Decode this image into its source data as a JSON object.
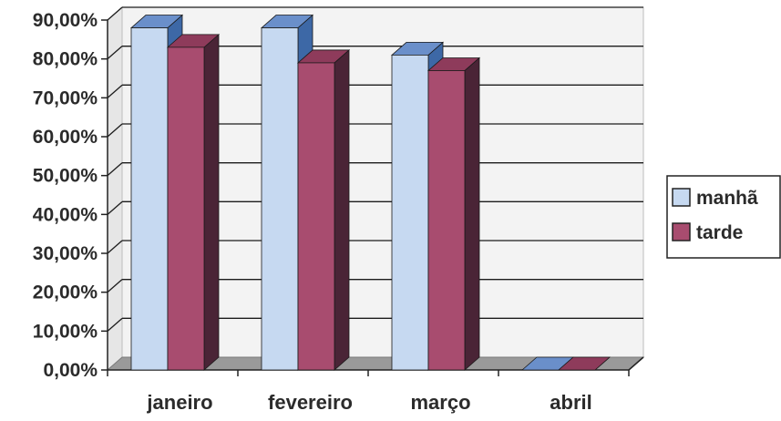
{
  "chart_data": {
    "type": "bar",
    "variant": "3d-clustered",
    "categories": [
      "janeiro",
      "fevereiro",
      "março",
      "abril"
    ],
    "series": [
      {
        "name": "manhã",
        "values": [
          0.88,
          0.88,
          0.81,
          0.0
        ]
      },
      {
        "name": "tarde",
        "values": [
          0.83,
          0.79,
          0.77,
          0.0
        ]
      }
    ],
    "ylim": [
      0,
      0.9
    ],
    "yticks": [
      "0,00%",
      "10,00%",
      "20,00%",
      "30,00%",
      "40,00%",
      "50,00%",
      "60,00%",
      "70,00%",
      "80,00%",
      "90,00%"
    ],
    "grid": true,
    "legend_position": "right",
    "colors": {
      "manha_front": "#c6d9f1",
      "manha_side": "#3d68a6",
      "manha_top": "#6a8fca",
      "tarde_front": "#a84c6f",
      "tarde_side": "#4a2436",
      "tarde_top": "#8e3b5b",
      "gridline": "#1c1c1c",
      "wall": "#f3f3f3",
      "floor": "#9a9a9a"
    }
  }
}
